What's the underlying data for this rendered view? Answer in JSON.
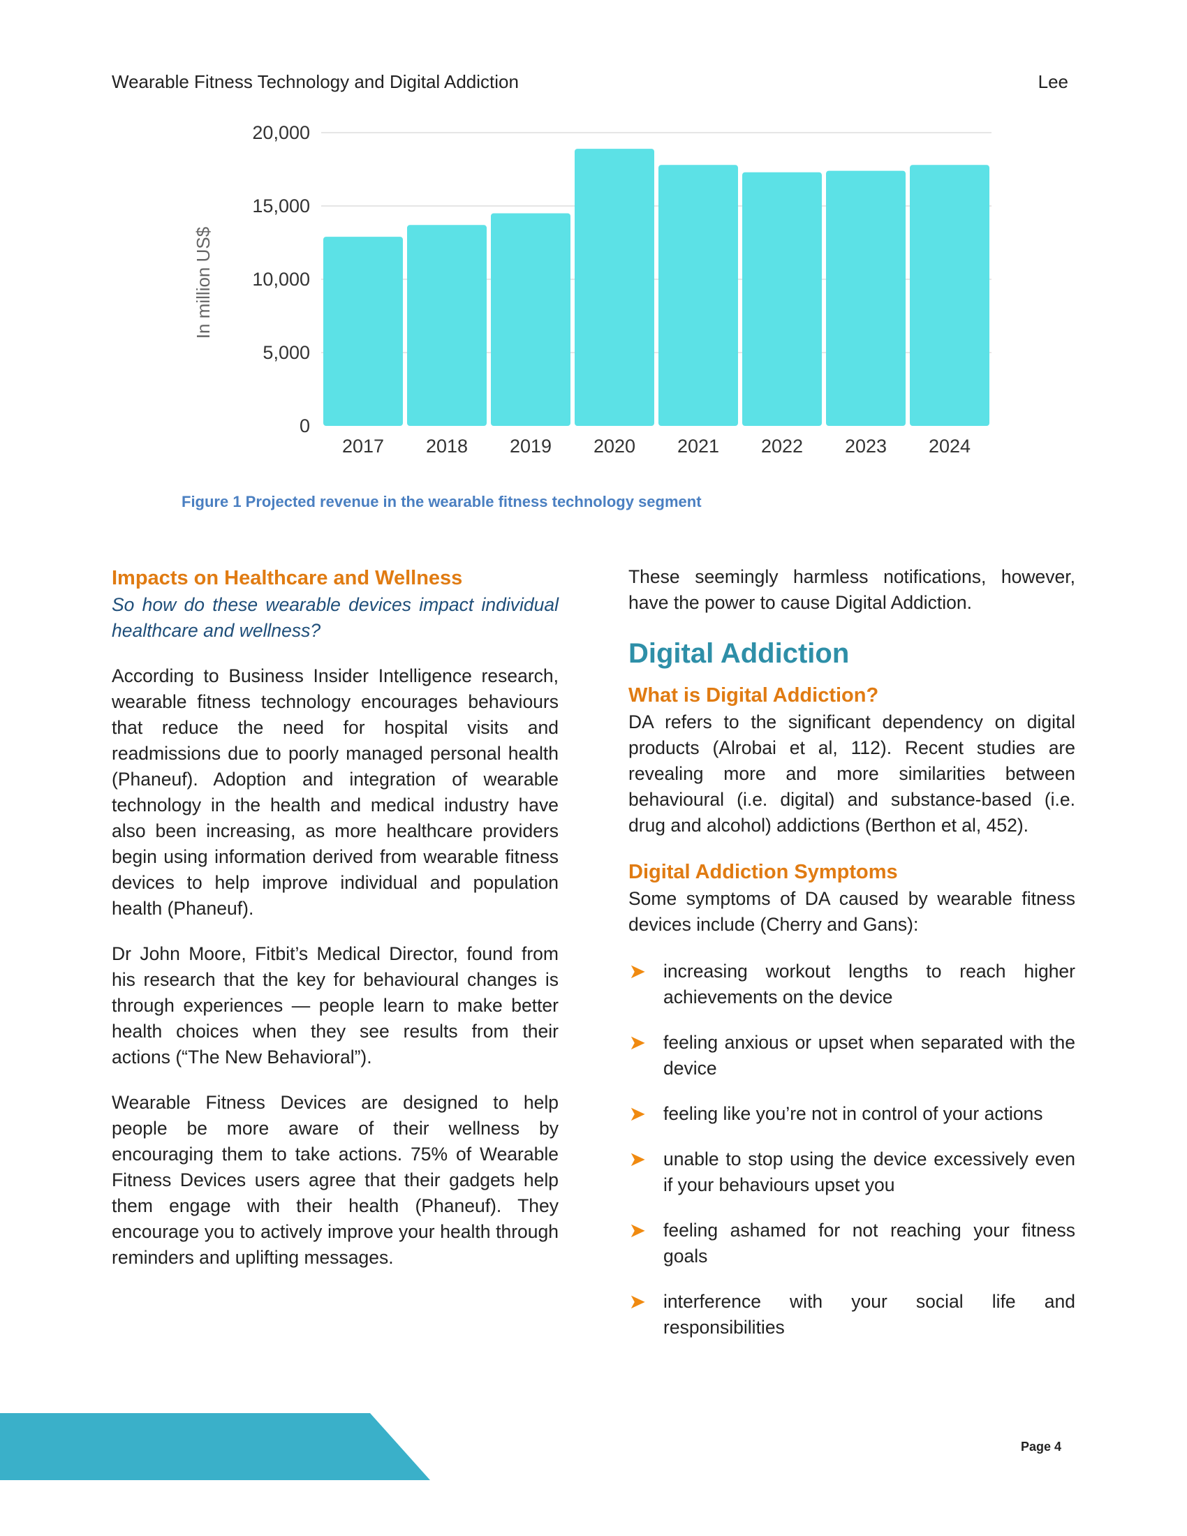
{
  "header": {
    "title": "Wearable Fitness Technology and Digital Addiction",
    "author": "Lee"
  },
  "chart_data": {
    "type": "bar",
    "categories": [
      "2017",
      "2018",
      "2019",
      "2020",
      "2021",
      "2022",
      "2023",
      "2024"
    ],
    "values": [
      12900,
      13700,
      14500,
      18900,
      17800,
      17300,
      17400,
      17800
    ],
    "ylabel": "In million US$",
    "ylim": [
      0,
      20000
    ],
    "yticks": [
      "0",
      "5,000",
      "10,000",
      "15,000",
      "20,000"
    ],
    "grid": true,
    "bar_color": "#5ce1e6"
  },
  "caption": "Figure 1 Projected revenue in the wearable fitness technology segment",
  "left": {
    "heading": "Impacts on Healthcare and Wellness",
    "question": "So how do these wearable devices impact individual healthcare and wellness?",
    "para1": "According to Business Insider Intelligence research, wearable fitness technology encourages behaviours that reduce the need for hospital visits and readmissions due to poorly managed personal health (Phaneuf). Adoption and integration of wearable technology in the health and medical industry have also been increasing, as more healthcare providers begin using information derived from wearable fitness devices to help improve individual and population health (Phaneuf).",
    "para2": "Dr John Moore, Fitbit’s Medical Director, found from his research that the key for behavioural changes is through experiences — people learn to make better health choices when they see results from their actions (“The New Behavioral”).",
    "para3": "Wearable Fitness Devices are designed to help people be more aware of their wellness by encouraging them to take actions. 75% of Wearable Fitness Devices users agree that their gadgets help them engage with their health (Phaneuf). They encourage you to actively improve your health through reminders and uplifting messages."
  },
  "right": {
    "intro": "These seemingly harmless notifications, however, have the power to cause Digital Addiction.",
    "section_title": "Digital Addiction",
    "what_heading": "What is Digital Addiction?",
    "what_text": "DA refers to the significant dependency on digital products (Alrobai et al, 112). Recent studies are revealing more and more similarities between behavioural (i.e. digital) and substance-based (i.e. drug and alcohol) addictions (Berthon et al, 452).",
    "symptoms_heading": "Digital Addiction Symptoms",
    "symptoms_intro": "Some symptoms of DA caused by wearable fitness devices include (Cherry and Gans):",
    "symptoms": [
      "increasing workout lengths to reach higher achievements on the device",
      "feeling anxious or upset when separated with the device",
      "feeling like you’re not in control of your actions",
      "unable to stop using the device excessively even if your behaviours upset you",
      "feeling ashamed for not reaching your fitness goals",
      "interference with your social life and responsibilities"
    ]
  },
  "footer": {
    "page": "Page 4",
    "band_color": "#3ab0c9"
  }
}
